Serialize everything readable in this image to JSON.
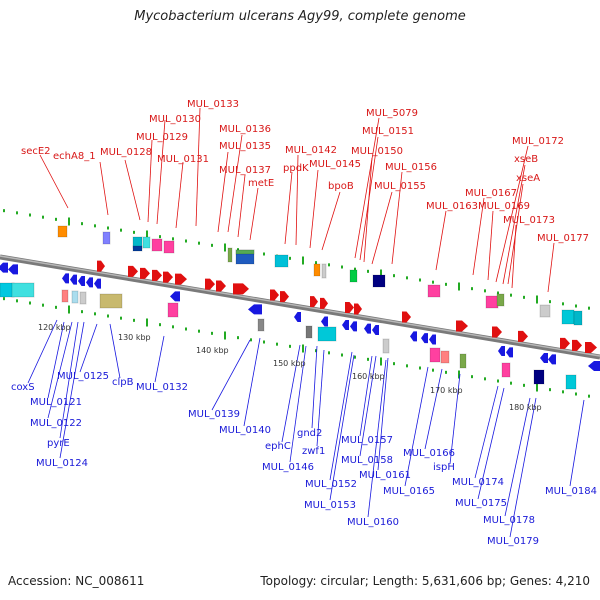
{
  "title": "Mycobacterium ulcerans Agy99, complete genome",
  "footer": {
    "accession": "Accession: NC_008611",
    "summary": "Topology: circular; Length: 5,631,606 bp; Genes: 4,210"
  },
  "colors": {
    "forward": "#e01010",
    "reverse": "#1818e0",
    "backbone": "#888888",
    "ticks": "#22aa22"
  },
  "kbp_labels": [
    "120 kbp",
    "130 kbp",
    "140 kbp",
    "150 kbp",
    "160 kbp",
    "170 kbp",
    "180 kbp"
  ],
  "top_labels": [
    "secE2",
    "echA8_1",
    "MUL_0128",
    "MUL_0129",
    "MUL_0130",
    "MUL_0133",
    "MUL_0131",
    "MUL_0135",
    "MUL_0136",
    "MUL_0137",
    "metE",
    "ppdK",
    "MUL_0142",
    "MUL_0145",
    "bpoB",
    "MUL_5079",
    "MUL_0151",
    "MUL_0150",
    "MUL_0155",
    "MUL_0156",
    "MUL_0163",
    "MUL_0167",
    "MUL_0169",
    "MUL_0172",
    "xseB",
    "xseA",
    "MUL_0173",
    "MUL_0177"
  ],
  "bottom_labels": [
    "coxS",
    "MUL_0121",
    "MUL_0122",
    "pyrE",
    "MUL_0124",
    "MUL_0125",
    "clpB",
    "MUL_0132",
    "MUL_0139",
    "MUL_0140",
    "ephC",
    "MUL_0146",
    "gnd2",
    "zwf1",
    "MUL_0152",
    "MUL_0153",
    "MUL_0157",
    "MUL_0158",
    "MUL_0161",
    "MUL_0160",
    "MUL_0165",
    "MUL_0166",
    "ispH",
    "MUL_0174",
    "MUL_0175",
    "MUL_0178",
    "MUL_0179",
    "MUL_0184"
  ]
}
